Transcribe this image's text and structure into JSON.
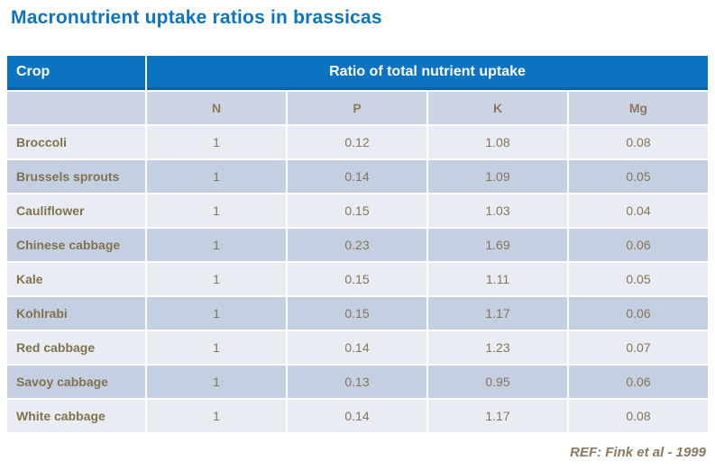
{
  "title": "Macronutrient uptake ratios in brassicas",
  "table": {
    "header": {
      "crop_label": "Crop",
      "ratio_label": "Ratio of total nutrient uptake"
    },
    "columns": [
      "N",
      "P",
      "K",
      "Mg"
    ],
    "rows": [
      {
        "crop": "Broccoli",
        "n": "1",
        "p": "0.12",
        "k": "1.08",
        "mg": "0.08"
      },
      {
        "crop": "Brussels sprouts",
        "n": "1",
        "p": "0.14",
        "k": "1.09",
        "mg": "0.05"
      },
      {
        "crop": "Cauliflower",
        "n": "1",
        "p": "0.15",
        "k": "1.03",
        "mg": "0.04"
      },
      {
        "crop": "Chinese cabbage",
        "n": "1",
        "p": "0.23",
        "k": "1.69",
        "mg": "0.06"
      },
      {
        "crop": "Kale",
        "n": "1",
        "p": "0.15",
        "k": "1.11",
        "mg": "0.05"
      },
      {
        "crop": "Kohlrabi",
        "n": "1",
        "p": "0.15",
        "k": "1.17",
        "mg": "0.06"
      },
      {
        "crop": "Red cabbage",
        "n": "1",
        "p": "0.14",
        "k": "1.23",
        "mg": "0.07"
      },
      {
        "crop": "Savoy cabbage",
        "n": "1",
        "p": "0.13",
        "k": "0.95",
        "mg": "0.06"
      },
      {
        "crop": "White cabbage",
        "n": "1",
        "p": "0.14",
        "k": "1.17",
        "mg": "0.08"
      }
    ]
  },
  "footer": {
    "reference": "REF: Fink et al - 1999"
  },
  "colors": {
    "title_blue": "#0e74be",
    "header_blue": "#0b73bf",
    "header_border_blue": "#10609f",
    "subheader_bg": "#ccd3e3",
    "row_light": "#e9ecf3",
    "row_dark": "#c4cfe1",
    "text_brown": "#8a7960",
    "header_text": "#ffffff"
  }
}
